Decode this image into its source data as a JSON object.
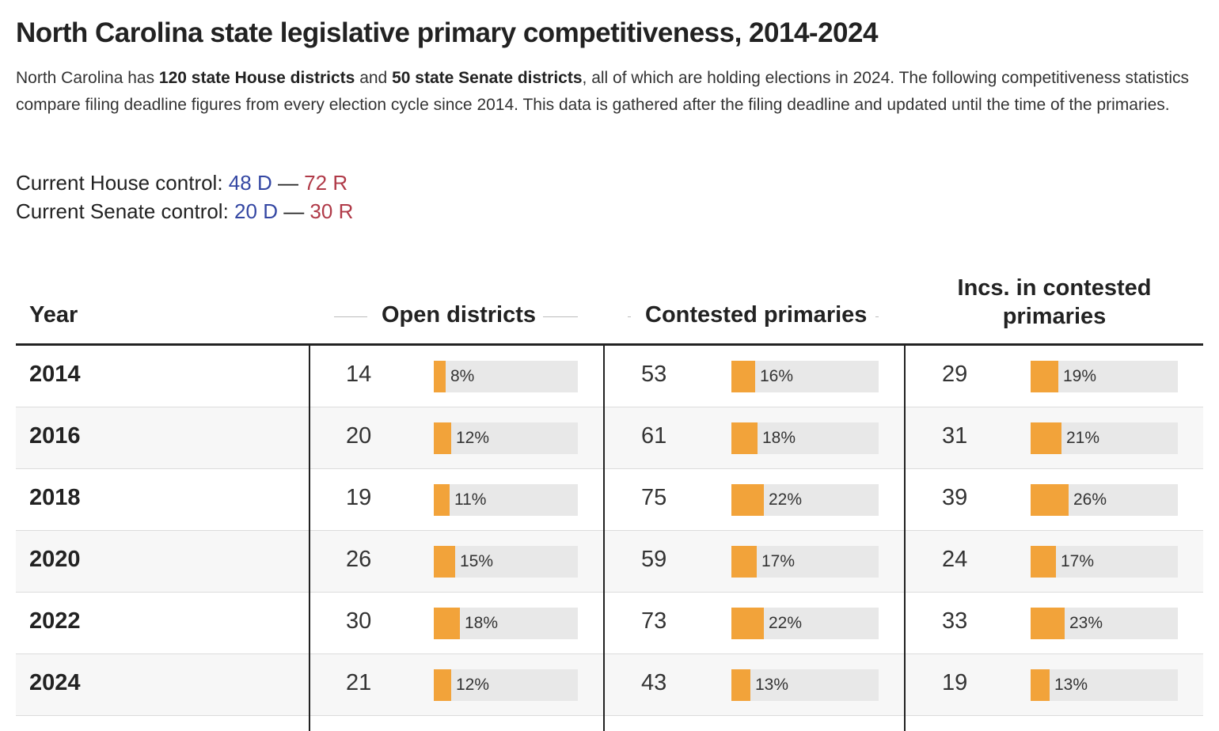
{
  "title": "North Carolina state legislative primary competitiveness, 2014-2024",
  "description": {
    "p1": "North Carolina has ",
    "b1": "120 state House districts",
    "p2": " and ",
    "b2": "50 state Senate districts",
    "p3": ", all of which are holding elections in 2024. The following competitiveness statistics compare filing deadline figures from every election cycle since 2014. This data is gathered after the filing deadline and updated until the time of the primaries."
  },
  "control": {
    "house": {
      "label": "Current House control: ",
      "dem": "48 D",
      "sep": " — ",
      "rep": "72 R"
    },
    "senate": {
      "label": "Current Senate control: ",
      "dem": "20 D",
      "sep": " — ",
      "rep": "30 R"
    }
  },
  "colors": {
    "bar": "#f2a33a",
    "track": "#e8e8e8",
    "dem": "#3447a3",
    "rep": "#b03a48"
  },
  "chart_data": {
    "type": "table",
    "headers": [
      "Year",
      "Open districts",
      "Contested primaries",
      "Incs. in contested primaries"
    ],
    "rows": [
      {
        "year": "2014",
        "open": {
          "count": "14",
          "pct": "8%"
        },
        "contested": {
          "count": "53",
          "pct": "16%"
        },
        "incs": {
          "count": "29",
          "pct": "19%"
        }
      },
      {
        "year": "2016",
        "open": {
          "count": "20",
          "pct": "12%"
        },
        "contested": {
          "count": "61",
          "pct": "18%"
        },
        "incs": {
          "count": "31",
          "pct": "21%"
        }
      },
      {
        "year": "2018",
        "open": {
          "count": "19",
          "pct": "11%"
        },
        "contested": {
          "count": "75",
          "pct": "22%"
        },
        "incs": {
          "count": "39",
          "pct": "26%"
        }
      },
      {
        "year": "2020",
        "open": {
          "count": "26",
          "pct": "15%"
        },
        "contested": {
          "count": "59",
          "pct": "17%"
        },
        "incs": {
          "count": "24",
          "pct": "17%"
        }
      },
      {
        "year": "2022",
        "open": {
          "count": "30",
          "pct": "18%"
        },
        "contested": {
          "count": "73",
          "pct": "22%"
        },
        "incs": {
          "count": "33",
          "pct": "23%"
        }
      },
      {
        "year": "2024",
        "open": {
          "count": "21",
          "pct": "12%"
        },
        "contested": {
          "count": "43",
          "pct": "13%"
        },
        "incs": {
          "count": "19",
          "pct": "13%"
        }
      }
    ]
  }
}
